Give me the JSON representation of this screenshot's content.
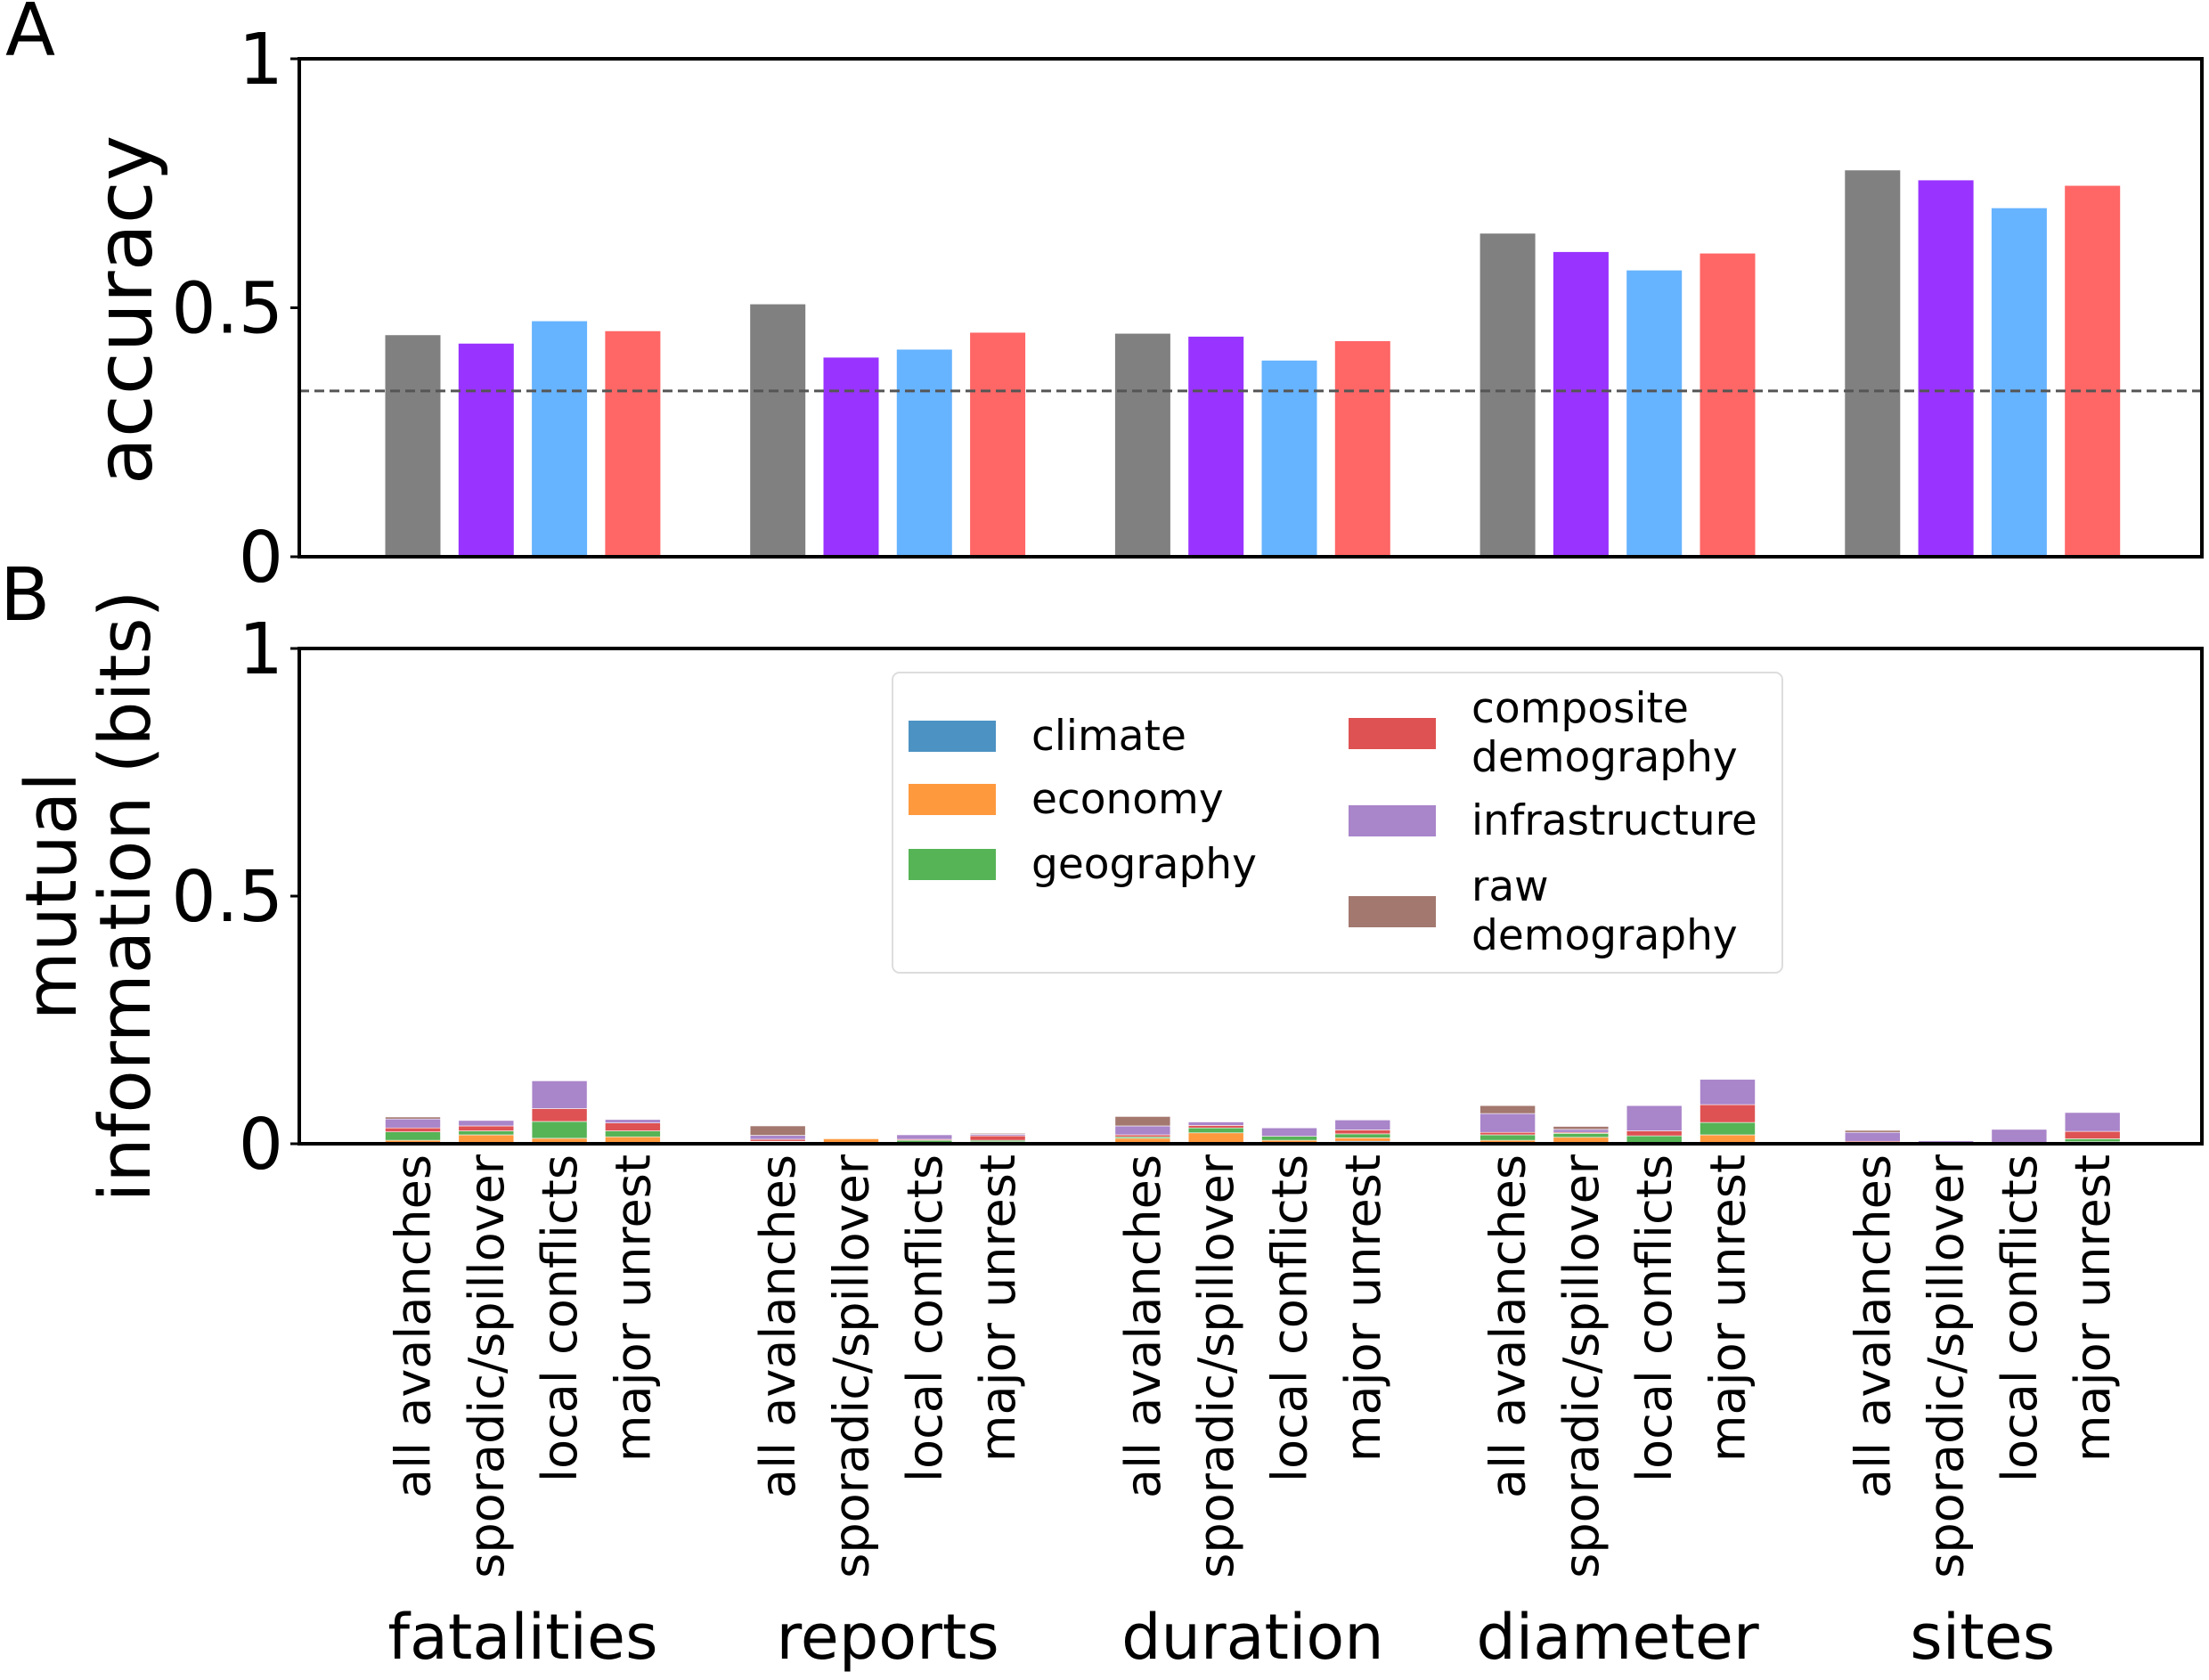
{
  "panel_labels": [
    "A",
    "B"
  ],
  "chart_data": [
    {
      "type": "bar",
      "panel": "A",
      "ylabel": "accuracy",
      "ylim": [
        0,
        1
      ],
      "yticks": [
        "0",
        "0.5",
        "1"
      ],
      "groups": [
        "fatalities",
        "reports",
        "duration",
        "diameter",
        "sites"
      ],
      "bar_colors": [
        "#808080",
        "#9933ff",
        "#66b3ff",
        "#ff6666"
      ],
      "values": [
        [
          0.445,
          0.428,
          0.473,
          0.453
        ],
        [
          0.507,
          0.4,
          0.416,
          0.45
        ],
        [
          0.448,
          0.442,
          0.394,
          0.433
        ],
        [
          0.649,
          0.612,
          0.575,
          0.609
        ],
        [
          0.776,
          0.756,
          0.7,
          0.745
        ]
      ],
      "baseline": 0.333,
      "grid": false
    },
    {
      "type": "bar",
      "stacked": true,
      "panel": "B",
      "ylabel_lines": [
        "mutual",
        "information (bits)"
      ],
      "ylim": [
        0,
        1
      ],
      "yticks": [
        "0",
        "0.5",
        "1"
      ],
      "groups": [
        "fatalities",
        "reports",
        "duration",
        "diameter",
        "sites"
      ],
      "categories": [
        "all avalanches",
        "sporadic/spillover",
        "local conflicts",
        "major unrest"
      ],
      "legend_placement": "upper center",
      "series": [
        {
          "name": "climate",
          "color": "#1f77b4",
          "values": [
            [
              0,
              0,
              0,
              0
            ],
            [
              0,
              0,
              0,
              0
            ],
            [
              0,
              0,
              0,
              0.005
            ],
            [
              0,
              0,
              0,
              0
            ],
            [
              0,
              0,
              0,
              0
            ]
          ]
        },
        {
          "name": "economy",
          "color": "#ff7f0e",
          "values": [
            [
              0.007,
              0.018,
              0.011,
              0.014
            ],
            [
              0.004,
              0.01,
              0.002,
              0.004
            ],
            [
              0.011,
              0.022,
              0.007,
              0.007
            ],
            [
              0.007,
              0.013,
              0,
              0.018
            ],
            [
              0,
              0,
              0,
              0.004
            ]
          ]
        },
        {
          "name": "geography",
          "color": "#2ca02c",
          "values": [
            [
              0.017,
              0.008,
              0.034,
              0.012
            ],
            [
              0.001,
              0,
              0.005,
              0.003
            ],
            [
              0.003,
              0.01,
              0.008,
              0.008
            ],
            [
              0.011,
              0.008,
              0.016,
              0.025
            ],
            [
              0.003,
              0.002,
              0.001,
              0.006
            ]
          ]
        },
        {
          "name": "composite demography",
          "name_lines": [
            "composite",
            "demography"
          ],
          "color": "#d62728",
          "values": [
            [
              0.008,
              0.01,
              0.026,
              0.016
            ],
            [
              0.004,
              0,
              0.002,
              0.009
            ],
            [
              0.004,
              0.005,
              0,
              0.008
            ],
            [
              0.005,
              0.002,
              0.01,
              0.036
            ],
            [
              0.002,
              0,
              0.002,
              0.015
            ]
          ]
        },
        {
          "name": "infrastructure",
          "color": "#9467bd",
          "values": [
            [
              0.018,
              0.011,
              0.056,
              0.007
            ],
            [
              0.008,
              0,
              0.009,
              0.003
            ],
            [
              0.018,
              0.007,
              0.017,
              0.02
            ],
            [
              0.038,
              0.006,
              0.051,
              0.051
            ],
            [
              0.018,
              0.004,
              0.026,
              0.038
            ]
          ]
        },
        {
          "name": "raw demography",
          "name_lines": [
            "raw",
            "demography"
          ],
          "color": "#8c564b",
          "values": [
            [
              0.004,
              0,
              0,
              0
            ],
            [
              0.019,
              0,
              0,
              0.002
            ],
            [
              0.019,
              0,
              0,
              0
            ],
            [
              0.016,
              0.006,
              0,
              0.001
            ],
            [
              0.004,
              0.001,
              0,
              0
            ]
          ]
        }
      ],
      "grid": false
    }
  ]
}
